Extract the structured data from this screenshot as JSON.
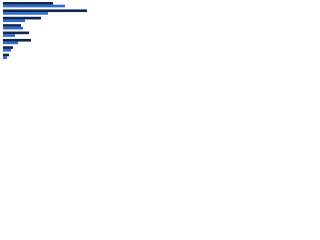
{
  "chart_data": {
    "type": "bar",
    "orientation": "horizontal",
    "categories": [
      null,
      null,
      null,
      null,
      null,
      null,
      null,
      null
    ],
    "series": [
      {
        "color": "#10264a",
        "values": [
          50,
          84,
          38,
          18,
          26,
          28,
          10,
          6
        ]
      },
      {
        "color": "#2e6bd0",
        "values": [
          62,
          45,
          22,
          20,
          12,
          15,
          8,
          4
        ]
      }
    ],
    "xlim": [
      0,
      85
    ]
  }
}
